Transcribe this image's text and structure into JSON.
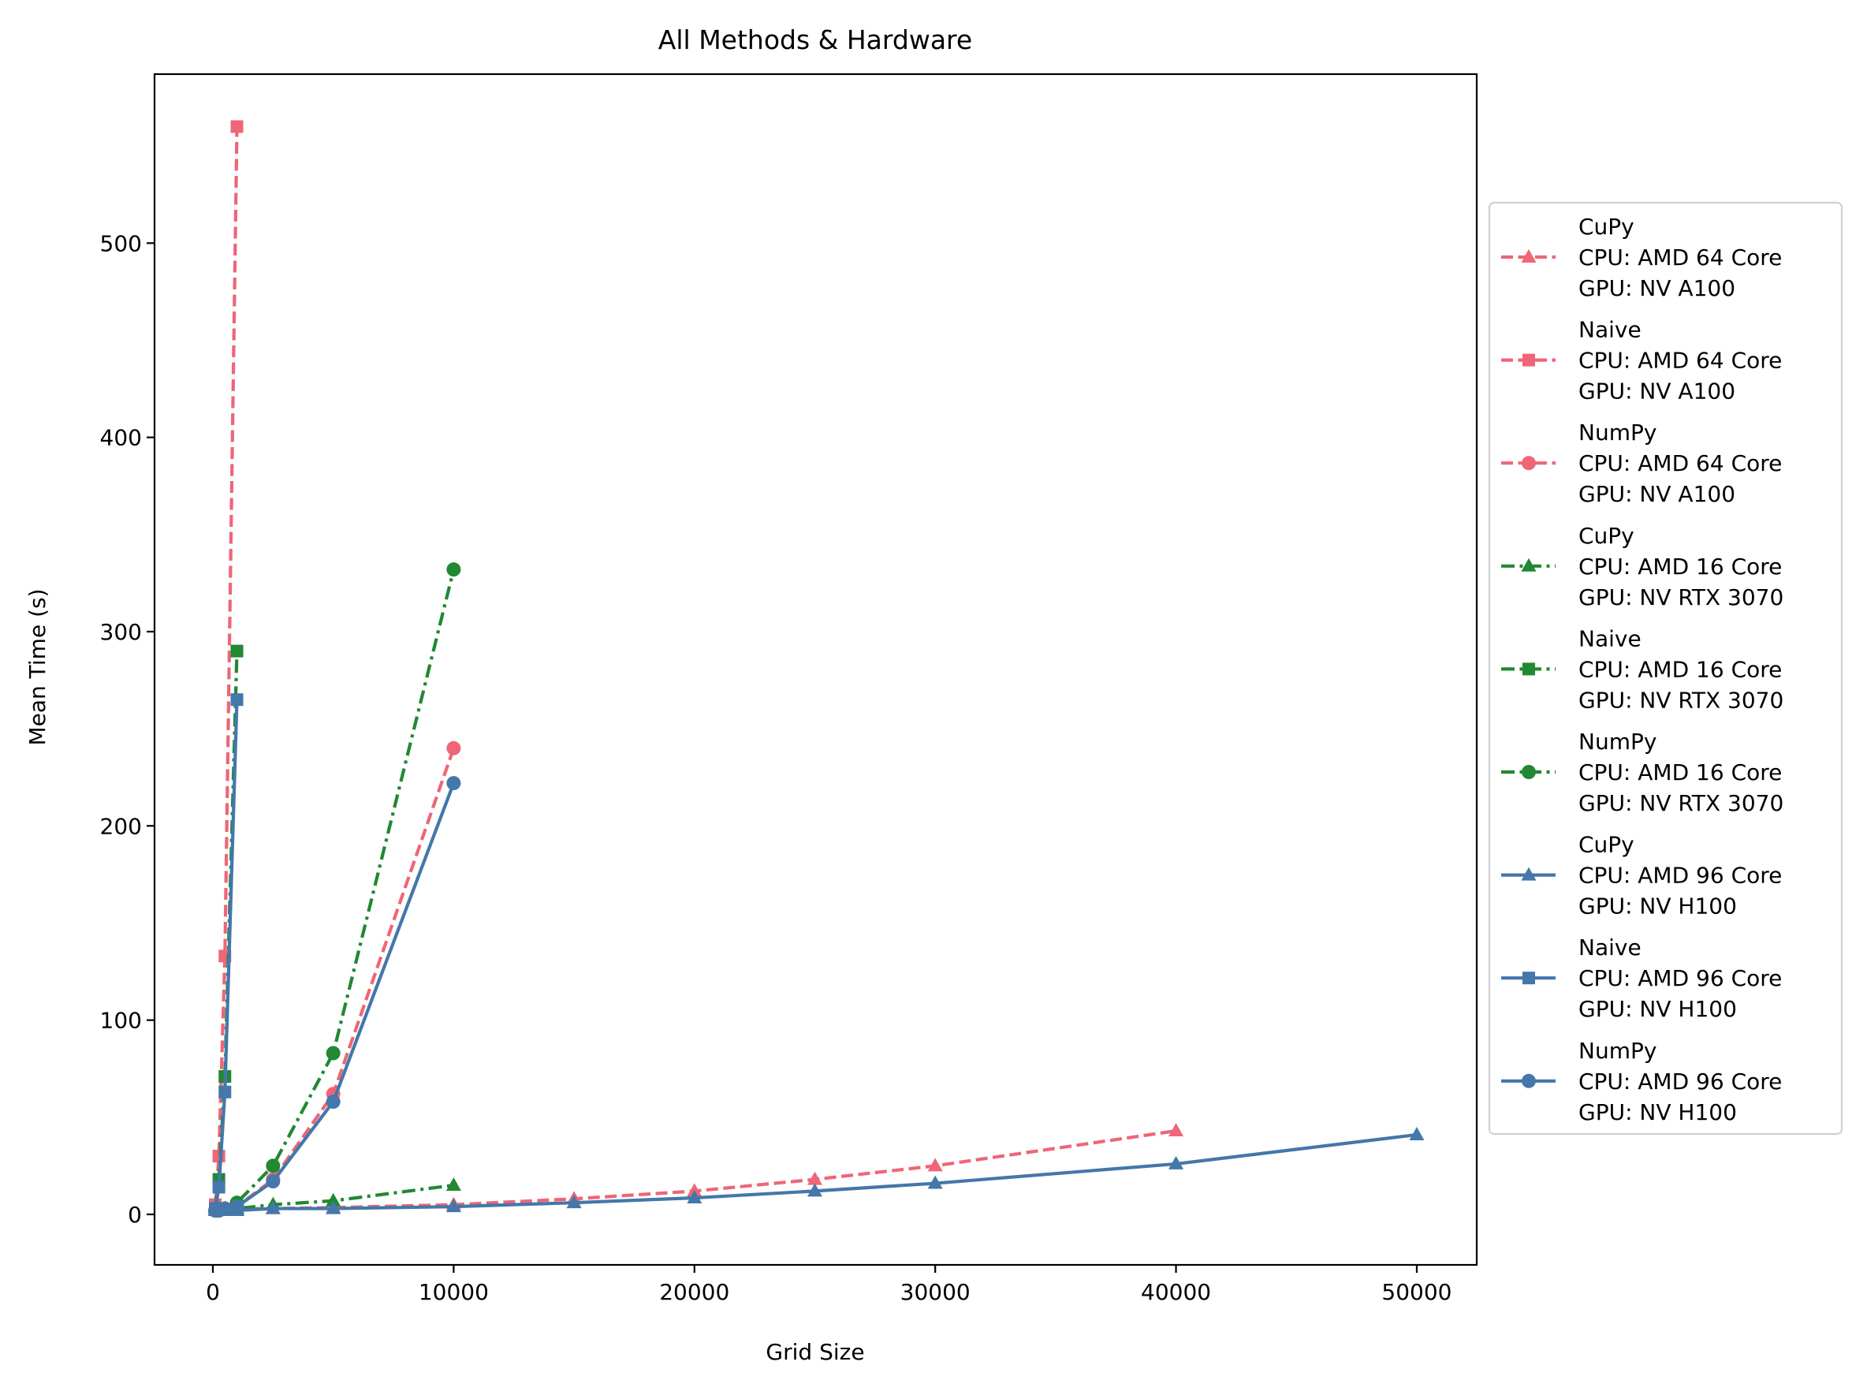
{
  "chart_data": {
    "type": "line",
    "title": "All Methods & Hardware",
    "xlabel": "Grid Size",
    "ylabel": "Mean Time (s)",
    "xlim": [
      -2423,
      52490
    ],
    "ylim": [
      -26,
      587
    ],
    "xticks": [
      0,
      10000,
      20000,
      30000,
      40000,
      50000
    ],
    "yticks": [
      0,
      100,
      200,
      300,
      400,
      500
    ],
    "grid": false,
    "legend_placement": "outside right",
    "colors": {
      "amd64": "#EE6677",
      "amd16": "#228833",
      "amd96": "#4477AA"
    },
    "series": [
      {
        "name": "CuPy\nCPU: AMD 64 Core\nGPU: NV A100",
        "lines": [
          "CuPy",
          "CPU: AMD 64 Core",
          "GPU: NV A100"
        ],
        "color": "#EE6677",
        "linestyle": "dashed",
        "marker": "triangle",
        "x": [
          100,
          250,
          500,
          1000,
          2500,
          5000,
          10000,
          15000,
          20000,
          25000,
          30000,
          40000
        ],
        "y": [
          3,
          3,
          3,
          3,
          3,
          3.5,
          5,
          8,
          12,
          18,
          25,
          43
        ]
      },
      {
        "name": "Naive\nCPU: AMD 64 Core\nGPU: NV A100",
        "lines": [
          "Naive",
          "CPU: AMD 64 Core",
          "GPU: NV A100"
        ],
        "color": "#EE6677",
        "linestyle": "dashed",
        "marker": "square",
        "x": [
          100,
          250,
          500,
          1000
        ],
        "y": [
          5,
          30,
          133,
          560
        ]
      },
      {
        "name": "NumPy\nCPU: AMD 64 Core\nGPU: NV A100",
        "lines": [
          "NumPy",
          "CPU: AMD 64 Core",
          "GPU: NV A100"
        ],
        "color": "#EE6677",
        "linestyle": "dashed",
        "marker": "circle",
        "x": [
          100,
          250,
          500,
          1000,
          2500,
          5000,
          10000
        ],
        "y": [
          2,
          2,
          3,
          4,
          18,
          62,
          240
        ]
      },
      {
        "name": "CuPy\nCPU: AMD 16 Core\nGPU: NV RTX 3070",
        "lines": [
          "CuPy",
          "CPU: AMD 16 Core",
          "GPU: NV RTX 3070"
        ],
        "color": "#228833",
        "linestyle": "dashdot",
        "marker": "triangle",
        "x": [
          100,
          250,
          500,
          1000,
          2500,
          5000,
          10000
        ],
        "y": [
          3,
          3,
          3,
          3,
          5,
          7,
          15
        ]
      },
      {
        "name": "Naive\nCPU: AMD 16 Core\nGPU: NV RTX 3070",
        "lines": [
          "Naive",
          "CPU: AMD 16 Core",
          "GPU: NV RTX 3070"
        ],
        "color": "#228833",
        "linestyle": "dashdot",
        "marker": "square",
        "x": [
          100,
          250,
          500,
          1000
        ],
        "y": [
          3,
          18,
          71,
          290
        ]
      },
      {
        "name": "NumPy\nCPU: AMD 16 Core\nGPU: NV RTX 3070",
        "lines": [
          "NumPy",
          "CPU: AMD 16 Core",
          "GPU: NV RTX 3070"
        ],
        "color": "#228833",
        "linestyle": "dashdot",
        "marker": "circle",
        "x": [
          100,
          250,
          500,
          1000,
          2500,
          5000,
          10000
        ],
        "y": [
          2,
          2,
          3,
          6,
          25,
          83,
          332
        ]
      },
      {
        "name": "CuPy\nCPU: AMD 96 Core\nGPU: NV H100",
        "lines": [
          "CuPy",
          "CPU: AMD 96 Core",
          "GPU: NV H100"
        ],
        "color": "#4477AA",
        "linestyle": "solid",
        "marker": "triangle",
        "x": [
          100,
          250,
          500,
          1000,
          2500,
          5000,
          10000,
          15000,
          20000,
          25000,
          30000,
          40000,
          50000
        ],
        "y": [
          2,
          2,
          2,
          2,
          3,
          3,
          4,
          6,
          8.5,
          12,
          16,
          26,
          41
        ]
      },
      {
        "name": "Naive\nCPU: AMD 96 Core\nGPU: NV H100",
        "lines": [
          "Naive",
          "CPU: AMD 96 Core",
          "GPU: NV H100"
        ],
        "color": "#4477AA",
        "linestyle": "solid",
        "marker": "square",
        "x": [
          100,
          250,
          500,
          1000
        ],
        "y": [
          3,
          14,
          63,
          265
        ]
      },
      {
        "name": "NumPy\nCPU: AMD 96 Core\nGPU: NV H100",
        "lines": [
          "NumPy",
          "CPU: AMD 96 Core",
          "GPU: NV H100"
        ],
        "color": "#4477AA",
        "linestyle": "solid",
        "marker": "circle",
        "x": [
          100,
          250,
          500,
          1000,
          2500,
          5000,
          10000
        ],
        "y": [
          2,
          2,
          3,
          4,
          17,
          58,
          222
        ]
      }
    ]
  }
}
